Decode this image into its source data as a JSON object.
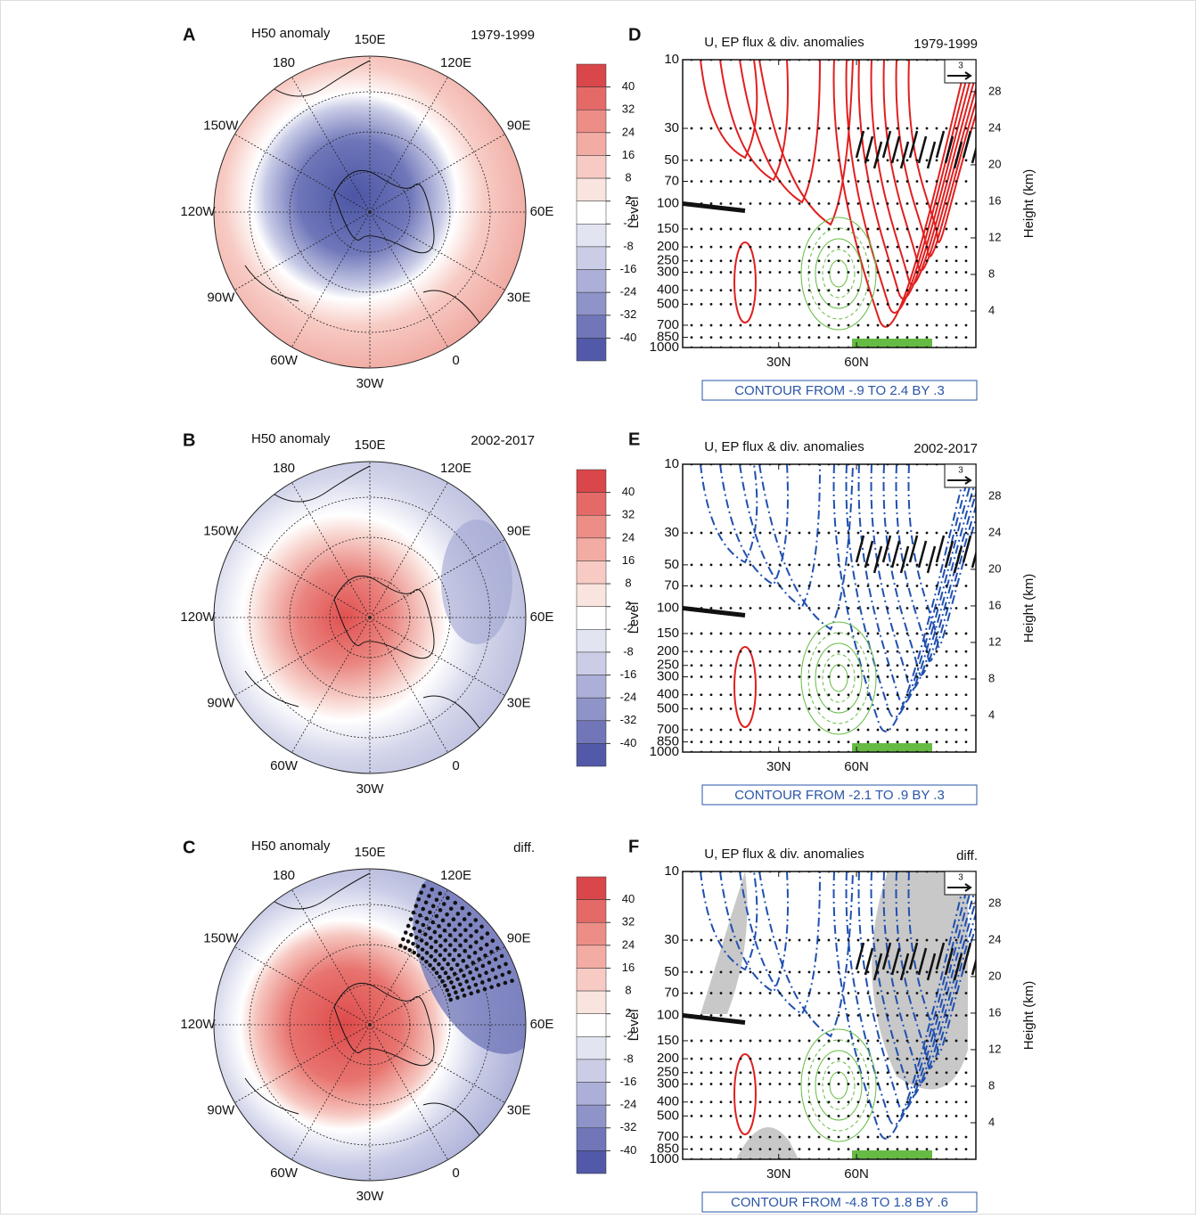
{
  "maps": {
    "type": "polar",
    "panels": [
      {
        "letter": "A",
        "title": "H50 anomaly",
        "period": "1979-1999"
      },
      {
        "letter": "B",
        "title": "H50 anomaly",
        "period": "2002-2017"
      },
      {
        "letter": "C",
        "title": "H50 anomaly",
        "period": "diff."
      }
    ],
    "lon_labels": [
      "150E",
      "120E",
      "90E",
      "60E",
      "30E",
      "0",
      "30W",
      "60W",
      "90W",
      "120W",
      "150W",
      "180"
    ],
    "colorbar": {
      "label": "Level",
      "ticks": [
        40,
        32,
        24,
        16,
        8,
        2,
        -2,
        -8,
        -16,
        -24,
        -32,
        -40
      ],
      "colors": [
        "#d9474a",
        "#e36a66",
        "#ec8d86",
        "#f2aca4",
        "#f7cbc4",
        "#fae4df",
        "#ffffff",
        "#e3e4f1",
        "#cbcde6",
        "#acb0d8",
        "#8e93c8",
        "#7076b8",
        "#5259a8"
      ]
    }
  },
  "sections": {
    "type": "contour",
    "panels": [
      {
        "letter": "D",
        "title": "U, EP flux & div. anomalies",
        "period": "1979-1999",
        "contour_note": "CONTOUR FROM -.9 TO 2.4 BY .3"
      },
      {
        "letter": "E",
        "title": "U, EP flux & div. anomalies",
        "period": "2002-2017",
        "contour_note": "CONTOUR FROM -2.1 TO .9 BY .3"
      },
      {
        "letter": "F",
        "title": "U, EP flux & div. anomalies",
        "period": "diff.",
        "contour_note": "CONTOUR FROM -4.8 TO 1.8 BY .6"
      }
    ],
    "ylim": [
      1000,
      10
    ],
    "log_y": true,
    "yticks": [
      10,
      30,
      50,
      70,
      100,
      150,
      200,
      250,
      300,
      400,
      500,
      700,
      850,
      1000
    ],
    "y2label": "Height (km)",
    "y2lim": [
      0,
      31.5
    ],
    "y2ticks": [
      28,
      24,
      20,
      16,
      12,
      8,
      4
    ],
    "xlim": [
      -7,
      106
    ],
    "xticks": [
      {
        "value": 30,
        "label": "30N"
      },
      {
        "value": 60,
        "label": "60N"
      }
    ],
    "arrow_scale": 3
  }
}
